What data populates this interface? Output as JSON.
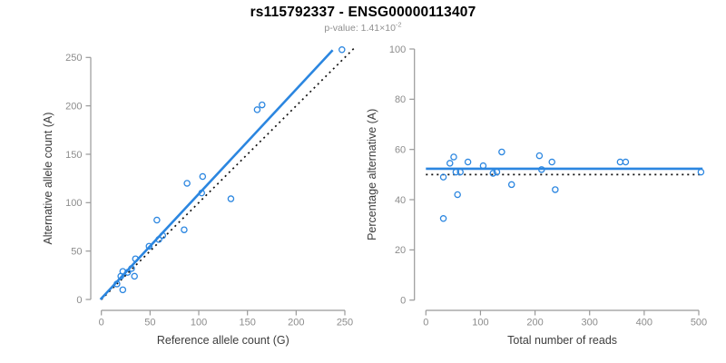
{
  "header": {
    "title": "rs115792337 - ENSG00000113407",
    "pvalue_label": "p-value: ",
    "pvalue_base": "1.41×10",
    "pvalue_exponent": "-2"
  },
  "colors": {
    "accent_blue": "#2b86e0",
    "reference_black": "#111111",
    "axis_gray": "#999999",
    "tick_label_gray": "#8c8c8c",
    "axis_title_gray": "#3d3d3d",
    "background": "#ffffff"
  },
  "chart_data": [
    {
      "type": "scatter",
      "title": "",
      "xlabel": "Reference allele count (G)",
      "ylabel": "Alternative allele count (A)",
      "xticks": [
        0,
        50,
        100,
        150,
        200,
        250
      ],
      "yticks": [
        0,
        50,
        100,
        150,
        200,
        250
      ],
      "xlim": [
        0,
        261
      ],
      "ylim": [
        0,
        261
      ],
      "grid": false,
      "marker": "open-circle",
      "points": [
        [
          16,
          16
        ],
        [
          20,
          24
        ],
        [
          22,
          29
        ],
        [
          27,
          28
        ],
        [
          31,
          32
        ],
        [
          35,
          42
        ],
        [
          49,
          55
        ],
        [
          59,
          62
        ],
        [
          63,
          66
        ],
        [
          57,
          82
        ],
        [
          85,
          72
        ],
        [
          88,
          120
        ],
        [
          103,
          110
        ],
        [
          104,
          127
        ],
        [
          133,
          104
        ],
        [
          22,
          10
        ],
        [
          34,
          24
        ],
        [
          160,
          196
        ],
        [
          165,
          201
        ],
        [
          247,
          258
        ]
      ],
      "fit_line": {
        "type": "segment",
        "x1": -1,
        "y1": 0,
        "x2": 237.5,
        "y2": 257.5,
        "dashed": false
      },
      "reference_line": {
        "type": "segment",
        "x1": 0,
        "y1": 0,
        "x2": 261,
        "y2": 261,
        "dashed": true
      }
    },
    {
      "type": "scatter",
      "title": "",
      "xlabel": "Total number of reads",
      "ylabel": "Percentage alternative (A)",
      "xticks": [
        0,
        100,
        200,
        300,
        400,
        500
      ],
      "yticks": [
        0,
        20,
        40,
        60,
        80,
        100
      ],
      "xlim": [
        0,
        507
      ],
      "ylim": [
        0,
        100
      ],
      "grid": false,
      "marker": "open-circle",
      "points": [
        [
          32,
          49
        ],
        [
          44,
          54.5
        ],
        [
          51,
          57
        ],
        [
          55,
          51
        ],
        [
          63,
          51
        ],
        [
          77,
          55
        ],
        [
          105,
          53.5
        ],
        [
          123,
          50.5
        ],
        [
          130,
          51
        ],
        [
          139,
          59
        ],
        [
          157,
          46
        ],
        [
          208,
          57.5
        ],
        [
          212,
          52
        ],
        [
          231,
          55
        ],
        [
          237,
          44
        ],
        [
          32,
          32.5
        ],
        [
          58,
          42
        ],
        [
          356,
          55
        ],
        [
          366,
          55
        ],
        [
          504,
          51
        ]
      ],
      "fit_line": {
        "type": "hline",
        "y": 52.3,
        "x1": 0,
        "x2": 507,
        "dashed": false
      },
      "reference_line": {
        "type": "hline",
        "y": 50,
        "x1": 0,
        "x2": 507,
        "dashed": true
      }
    }
  ]
}
